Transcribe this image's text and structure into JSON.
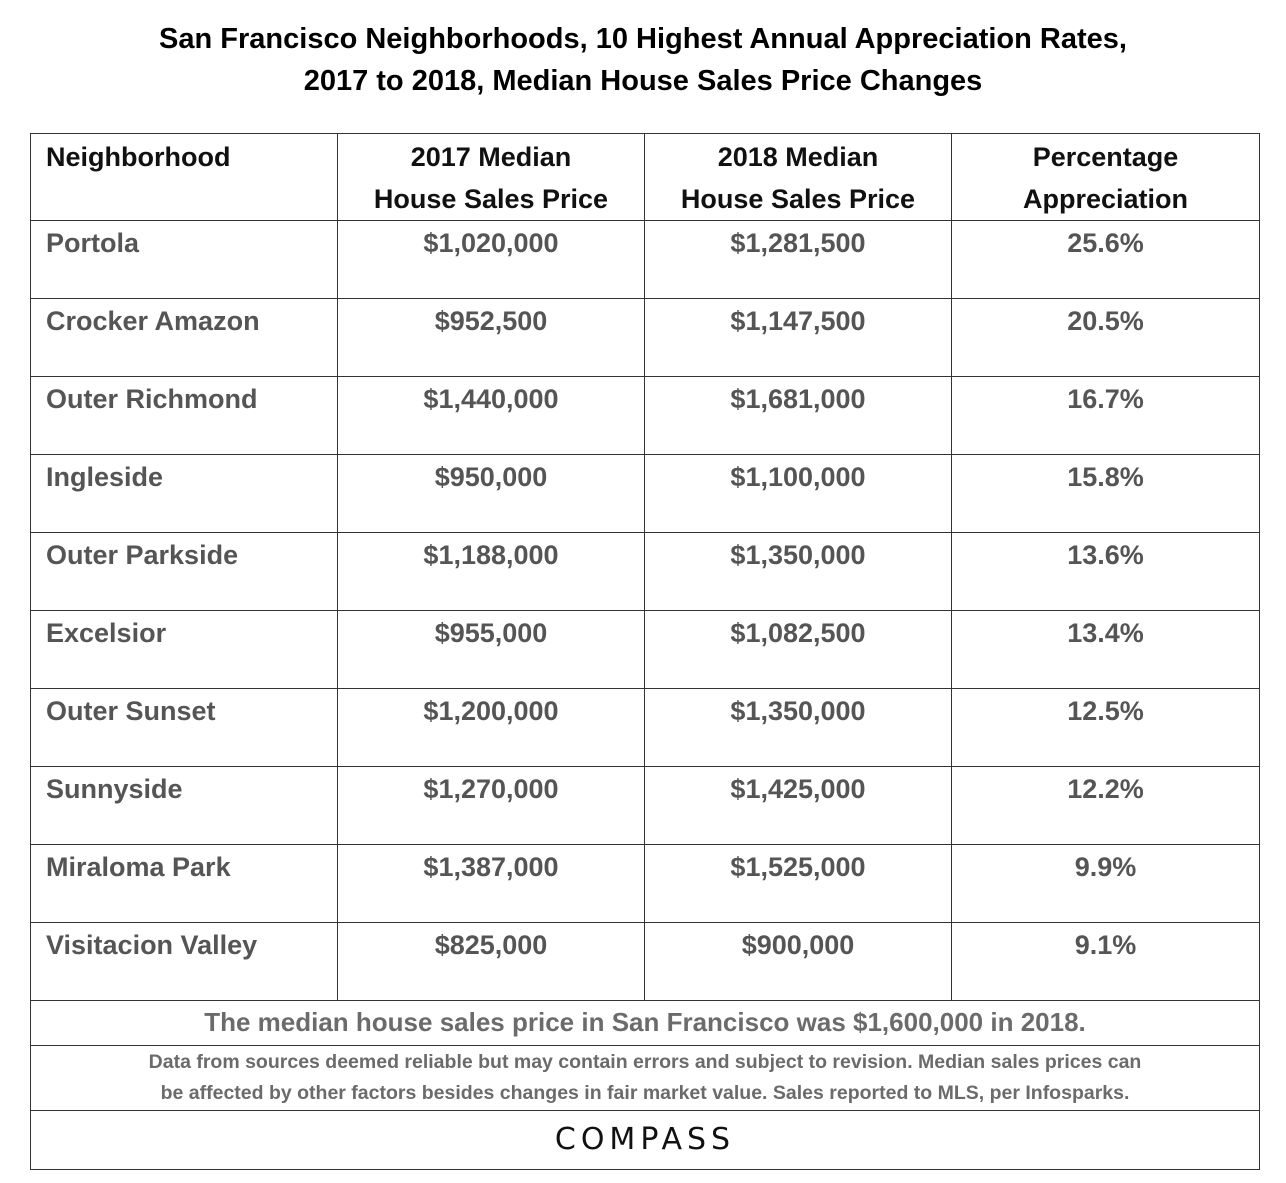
{
  "title": {
    "line1": "San Francisco Neighborhoods, 10 Highest Annual Appreciation Rates,",
    "line2": "2017 to 2018, Median House Sales Price Changes"
  },
  "headers": {
    "neighborhood": "Neighborhood",
    "price_2017_line1": "2017 Median",
    "price_2017_line2": "House Sales Price",
    "price_2018_line1": "2018 Median",
    "price_2018_line2": "House Sales Price",
    "appreciation_line1": "Percentage",
    "appreciation_line2": "Appreciation"
  },
  "rows": [
    {
      "neighborhood": "Portola",
      "price_2017": "$1,020,000",
      "price_2018": "$1,281,500",
      "appreciation": "25.6%"
    },
    {
      "neighborhood": "Crocker Amazon",
      "price_2017": "$952,500",
      "price_2018": "$1,147,500",
      "appreciation": "20.5%"
    },
    {
      "neighborhood": "Outer Richmond",
      "price_2017": "$1,440,000",
      "price_2018": "$1,681,000",
      "appreciation": "16.7%"
    },
    {
      "neighborhood": "Ingleside",
      "price_2017": "$950,000",
      "price_2018": "$1,100,000",
      "appreciation": "15.8%"
    },
    {
      "neighborhood": "Outer Parkside",
      "price_2017": "$1,188,000",
      "price_2018": "$1,350,000",
      "appreciation": "13.6%"
    },
    {
      "neighborhood": "Excelsior",
      "price_2017": "$955,000",
      "price_2018": "$1,082,500",
      "appreciation": "13.4%"
    },
    {
      "neighborhood": "Outer Sunset",
      "price_2017": "$1,200,000",
      "price_2018": "$1,350,000",
      "appreciation": "12.5%"
    },
    {
      "neighborhood": "Sunnyside",
      "price_2017": "$1,270,000",
      "price_2018": "$1,425,000",
      "appreciation": "12.2%"
    },
    {
      "neighborhood": "Miraloma Park",
      "price_2017": "$1,387,000",
      "price_2018": "$1,525,000",
      "appreciation": "9.9%"
    },
    {
      "neighborhood": "Visitacion Valley",
      "price_2017": "$825,000",
      "price_2018": "$900,000",
      "appreciation": "9.1%"
    }
  ],
  "summary": "The median house sales price in San Francisco was $1,600,000 in 2018.",
  "disclaimer": {
    "line1": "Data from sources deemed reliable but may contain errors and subject to revision. Median sales prices can",
    "line2": "be affected by other factors besides changes in fair market value. Sales reported to MLS, per Infosparks."
  },
  "logo": "COMPASS",
  "colors": {
    "header_text": "#111111",
    "body_text": "#555555",
    "footer_text": "#6b6b6b",
    "border": "#333333"
  }
}
